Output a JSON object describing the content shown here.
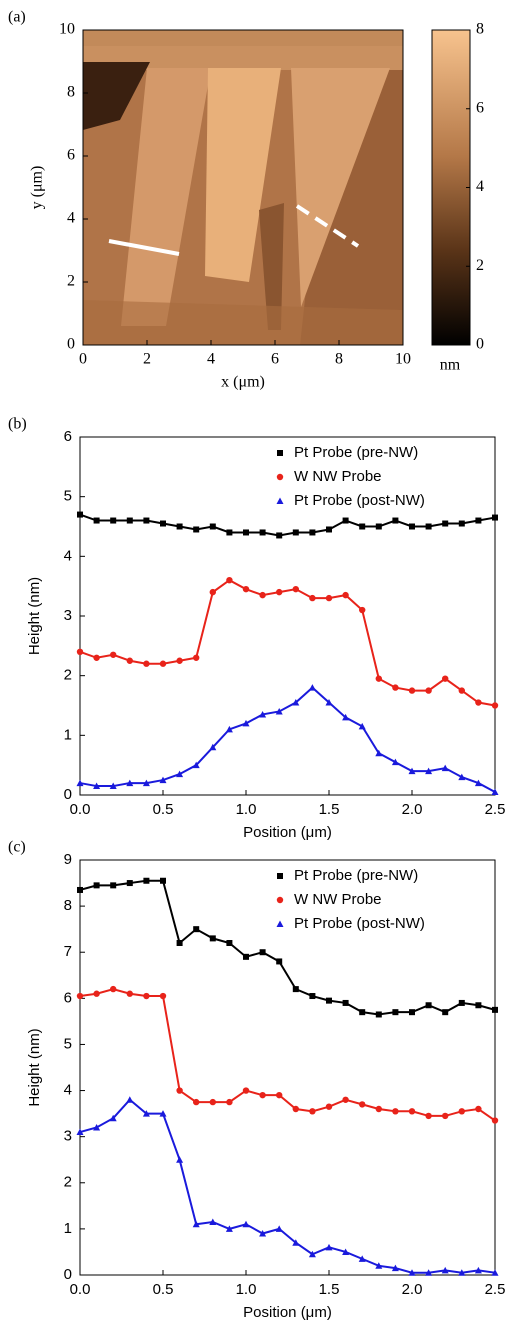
{
  "chart_data": [
    {
      "type": "image",
      "panel_label": "(a)",
      "x_label": "x (μm)",
      "y_label": "y (μm)",
      "xlim": [
        0,
        10
      ],
      "ylim": [
        0,
        10
      ],
      "xticks": [
        0,
        2,
        4,
        6,
        8,
        10
      ],
      "yticks": [
        0,
        2,
        4,
        6,
        8,
        10
      ],
      "colorbar": {
        "lim": [
          0,
          8
        ],
        "ticks": [
          0,
          2,
          4,
          6,
          8
        ],
        "label": "nm"
      }
    },
    {
      "type": "line",
      "panel_label": "(b)",
      "x_label": "Position (μm)",
      "y_label": "Height (nm)",
      "xlim": [
        0,
        2.5
      ],
      "ylim": [
        0,
        6
      ],
      "xticks": [
        {
          "value": 0,
          "label": "0.0"
        },
        0.5,
        {
          "value": 1,
          "label": "1.0"
        },
        1.5,
        {
          "value": 2,
          "label": "2.0"
        },
        2.5
      ],
      "yticks": [
        0,
        1,
        2,
        3,
        4,
        5,
        6
      ],
      "legend": "top-right",
      "x": [
        0,
        0.1,
        0.2,
        0.3,
        0.4,
        0.5,
        0.6,
        0.7,
        0.8,
        0.9,
        1.0,
        1.1,
        1.2,
        1.3,
        1.4,
        1.5,
        1.6,
        1.7,
        1.8,
        1.9,
        2.0,
        2.1,
        2.2,
        2.3,
        2.4,
        2.5
      ],
      "series": [
        {
          "name": "Pt Probe (pre-NW)",
          "color": "#000000",
          "marker": "square",
          "values": [
            4.7,
            4.6,
            4.6,
            4.6,
            4.6,
            4.55,
            4.5,
            4.45,
            4.5,
            4.4,
            4.4,
            4.4,
            4.35,
            4.4,
            4.4,
            4.45,
            4.6,
            4.5,
            4.5,
            4.6,
            4.5,
            4.5,
            4.55,
            4.55,
            4.6,
            4.65
          ]
        },
        {
          "name": "W NW Probe",
          "color": "#e8231a",
          "marker": "circle",
          "values": [
            2.4,
            2.3,
            2.35,
            2.25,
            2.2,
            2.2,
            2.25,
            2.3,
            3.4,
            3.6,
            3.45,
            3.35,
            3.4,
            3.45,
            3.3,
            3.3,
            3.35,
            3.1,
            1.95,
            1.8,
            1.75,
            1.75,
            1.95,
            1.75,
            1.55,
            1.5
          ]
        },
        {
          "name": "Pt Probe (post-NW)",
          "color": "#1a1adc",
          "marker": "triangle",
          "values": [
            0.2,
            0.15,
            0.15,
            0.2,
            0.2,
            0.25,
            0.35,
            0.5,
            0.8,
            1.1,
            1.2,
            1.35,
            1.4,
            1.55,
            1.8,
            1.55,
            1.3,
            1.15,
            0.7,
            0.55,
            0.4,
            0.4,
            0.45,
            0.3,
            0.2,
            0.05
          ]
        }
      ]
    },
    {
      "type": "line",
      "panel_label": "(c)",
      "x_label": "Position (μm)",
      "y_label": "Height (nm)",
      "xlim": [
        0,
        2.5
      ],
      "ylim": [
        0,
        9
      ],
      "xticks": [
        {
          "value": 0,
          "label": "0.0"
        },
        0.5,
        {
          "value": 1,
          "label": "1.0"
        },
        1.5,
        {
          "value": 2,
          "label": "2.0"
        },
        2.5
      ],
      "yticks": [
        0,
        1,
        2,
        3,
        4,
        5,
        6,
        7,
        8,
        9
      ],
      "legend": "top-right",
      "x": [
        0,
        0.1,
        0.2,
        0.3,
        0.4,
        0.5,
        0.6,
        0.7,
        0.8,
        0.9,
        1.0,
        1.1,
        1.2,
        1.3,
        1.4,
        1.5,
        1.6,
        1.7,
        1.8,
        1.9,
        2.0,
        2.1,
        2.2,
        2.3,
        2.4,
        2.5
      ],
      "series": [
        {
          "name": "Pt Probe (pre-NW)",
          "color": "#000000",
          "marker": "square",
          "values": [
            8.35,
            8.45,
            8.45,
            8.5,
            8.55,
            8.55,
            7.2,
            7.5,
            7.3,
            7.2,
            6.9,
            7.0,
            6.8,
            6.2,
            6.05,
            5.95,
            5.9,
            5.7,
            5.65,
            5.7,
            5.7,
            5.85,
            5.7,
            5.9,
            5.85,
            5.75
          ]
        },
        {
          "name": "W NW Probe",
          "color": "#e8231a",
          "marker": "circle",
          "values": [
            6.05,
            6.1,
            6.2,
            6.1,
            6.05,
            6.05,
            4.0,
            3.75,
            3.75,
            3.75,
            4.0,
            3.9,
            3.9,
            3.6,
            3.55,
            3.65,
            3.8,
            3.7,
            3.6,
            3.55,
            3.55,
            3.45,
            3.45,
            3.55,
            3.6,
            3.35
          ]
        },
        {
          "name": "Pt Probe (post-NW)",
          "color": "#1a1adc",
          "marker": "triangle",
          "values": [
            3.1,
            3.2,
            3.4,
            3.8,
            3.5,
            3.5,
            2.5,
            1.1,
            1.15,
            1.0,
            1.1,
            0.9,
            1.0,
            0.7,
            0.45,
            0.6,
            0.5,
            0.35,
            0.2,
            0.15,
            0.05,
            0.05,
            0.1,
            0.05,
            0.1,
            0.05
          ]
        }
      ]
    }
  ]
}
